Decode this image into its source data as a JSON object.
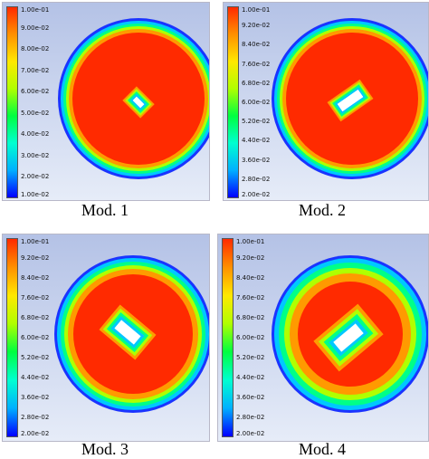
{
  "colormap": [
    "#0000ff",
    "#00b0ff",
    "#00ffd0",
    "#00ff40",
    "#b0ff00",
    "#ffe800",
    "#ff9000",
    "#ff2a00"
  ],
  "panels": [
    {
      "caption": "Mod. 1",
      "ticks": [
        "1.00e-01",
        "9.00e-02",
        "8.00e-02",
        "7.00e-02",
        "6.00e-02",
        "5.00e-02",
        "4.00e-02",
        "3.00e-02",
        "2.00e-02",
        "1.00e-02"
      ]
    },
    {
      "caption": "Mod. 2",
      "ticks": [
        "1.00e-01",
        "9.20e-02",
        "8.40e-02",
        "7.60e-02",
        "6.80e-02",
        "6.00e-02",
        "5.20e-02",
        "4.40e-02",
        "3.60e-02",
        "2.80e-02",
        "2.00e-02"
      ]
    },
    {
      "caption": "Mod. 3",
      "ticks": [
        "1.00e-01",
        "9.20e-02",
        "8.40e-02",
        "7.60e-02",
        "6.80e-02",
        "6.00e-02",
        "5.20e-02",
        "4.40e-02",
        "3.60e-02",
        "2.80e-02",
        "2.00e-02"
      ]
    },
    {
      "caption": "Mod. 4",
      "ticks": [
        "1.00e-01",
        "9.20e-02",
        "8.40e-02",
        "7.60e-02",
        "6.80e-02",
        "6.00e-02",
        "5.20e-02",
        "4.40e-02",
        "3.60e-02",
        "2.80e-02",
        "2.00e-02"
      ]
    }
  ]
}
